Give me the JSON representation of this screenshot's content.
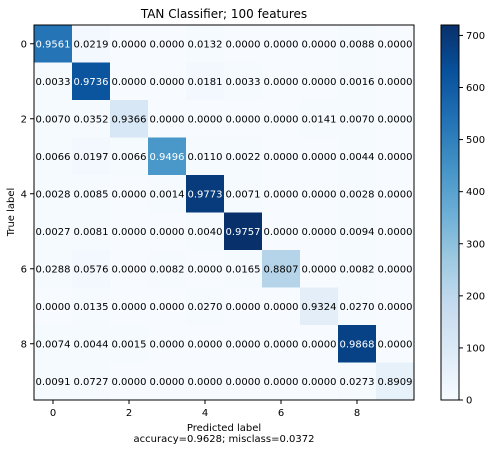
{
  "chart_data": {
    "type": "heatmap",
    "title": "TAN Classifier; 100 features",
    "xlabel": "Predicted label",
    "xlabel_note": "accuracy=0.9628; misclass=0.0372",
    "ylabel": "True label",
    "x_ticks": [
      "0",
      "2",
      "4",
      "6",
      "8"
    ],
    "y_ticks": [
      "0",
      "2",
      "4",
      "6",
      "8"
    ],
    "matrix": [
      [
        0.9561,
        0.0219,
        0.0,
        0.0,
        0.0132,
        0.0,
        0.0,
        0.0,
        0.0088,
        0.0
      ],
      [
        0.0033,
        0.9736,
        0.0,
        0.0,
        0.0181,
        0.0033,
        0.0,
        0.0,
        0.0016,
        0.0
      ],
      [
        0.007,
        0.0352,
        0.9366,
        0.0,
        0.0,
        0.0,
        0.0,
        0.0141,
        0.007,
        0.0
      ],
      [
        0.0066,
        0.0197,
        0.0066,
        0.9496,
        0.011,
        0.0022,
        0.0,
        0.0,
        0.0044,
        0.0
      ],
      [
        0.0028,
        0.0085,
        0.0,
        0.0014,
        0.9773,
        0.0071,
        0.0,
        0.0,
        0.0028,
        0.0
      ],
      [
        0.0027,
        0.0081,
        0.0,
        0.0,
        0.004,
        0.9757,
        0.0,
        0.0,
        0.0094,
        0.0
      ],
      [
        0.0288,
        0.0576,
        0.0,
        0.0082,
        0.0,
        0.0165,
        0.8807,
        0.0,
        0.0082,
        0.0
      ],
      [
        0.0,
        0.0135,
        0.0,
        0.0,
        0.027,
        0.0,
        0.0,
        0.9324,
        0.027,
        0.0
      ],
      [
        0.0074,
        0.0044,
        0.0015,
        0.0,
        0.0,
        0.0,
        0.0,
        0.0,
        0.9868,
        0.0
      ],
      [
        0.0091,
        0.0727,
        0.0,
        0.0,
        0.0,
        0.0,
        0.0,
        0.0,
        0.0273,
        0.8909
      ]
    ],
    "cell_color_levels": [
      [
        0.74,
        0.02,
        0,
        0,
        0.01,
        0,
        0,
        0,
        0.01,
        0
      ],
      [
        0.01,
        0.86,
        0,
        0,
        0.02,
        0.01,
        0,
        0,
        0.01,
        0
      ],
      [
        0.01,
        0.01,
        0.16,
        0,
        0,
        0,
        0,
        0.01,
        0.01,
        0
      ],
      [
        0.01,
        0.02,
        0.01,
        0.6,
        0.01,
        0.01,
        0,
        0,
        0.01,
        0
      ],
      [
        0.01,
        0.01,
        0,
        0.01,
        0.96,
        0.01,
        0,
        0,
        0.01,
        0
      ],
      [
        0.01,
        0.01,
        0,
        0,
        0.01,
        1.0,
        0,
        0,
        0.01,
        0
      ],
      [
        0.01,
        0.02,
        0,
        0.01,
        0,
        0.01,
        0.3,
        0,
        0.01,
        0
      ],
      [
        0,
        0.01,
        0,
        0,
        0.01,
        0,
        0,
        0.1,
        0.01,
        0
      ],
      [
        0.01,
        0.01,
        0.01,
        0,
        0,
        0,
        0,
        0,
        0.93,
        0
      ],
      [
        0.01,
        0.01,
        0,
        0,
        0,
        0,
        0,
        0,
        0.01,
        0.08
      ]
    ],
    "colorbar": {
      "colormap": "Blues",
      "range": [
        0,
        720
      ],
      "ticks": [
        "0",
        "100",
        "200",
        "300",
        "400",
        "500",
        "600",
        "700"
      ],
      "tick_values": [
        0,
        100,
        200,
        300,
        400,
        500,
        600,
        700
      ]
    },
    "grid": false,
    "legend": "none"
  }
}
